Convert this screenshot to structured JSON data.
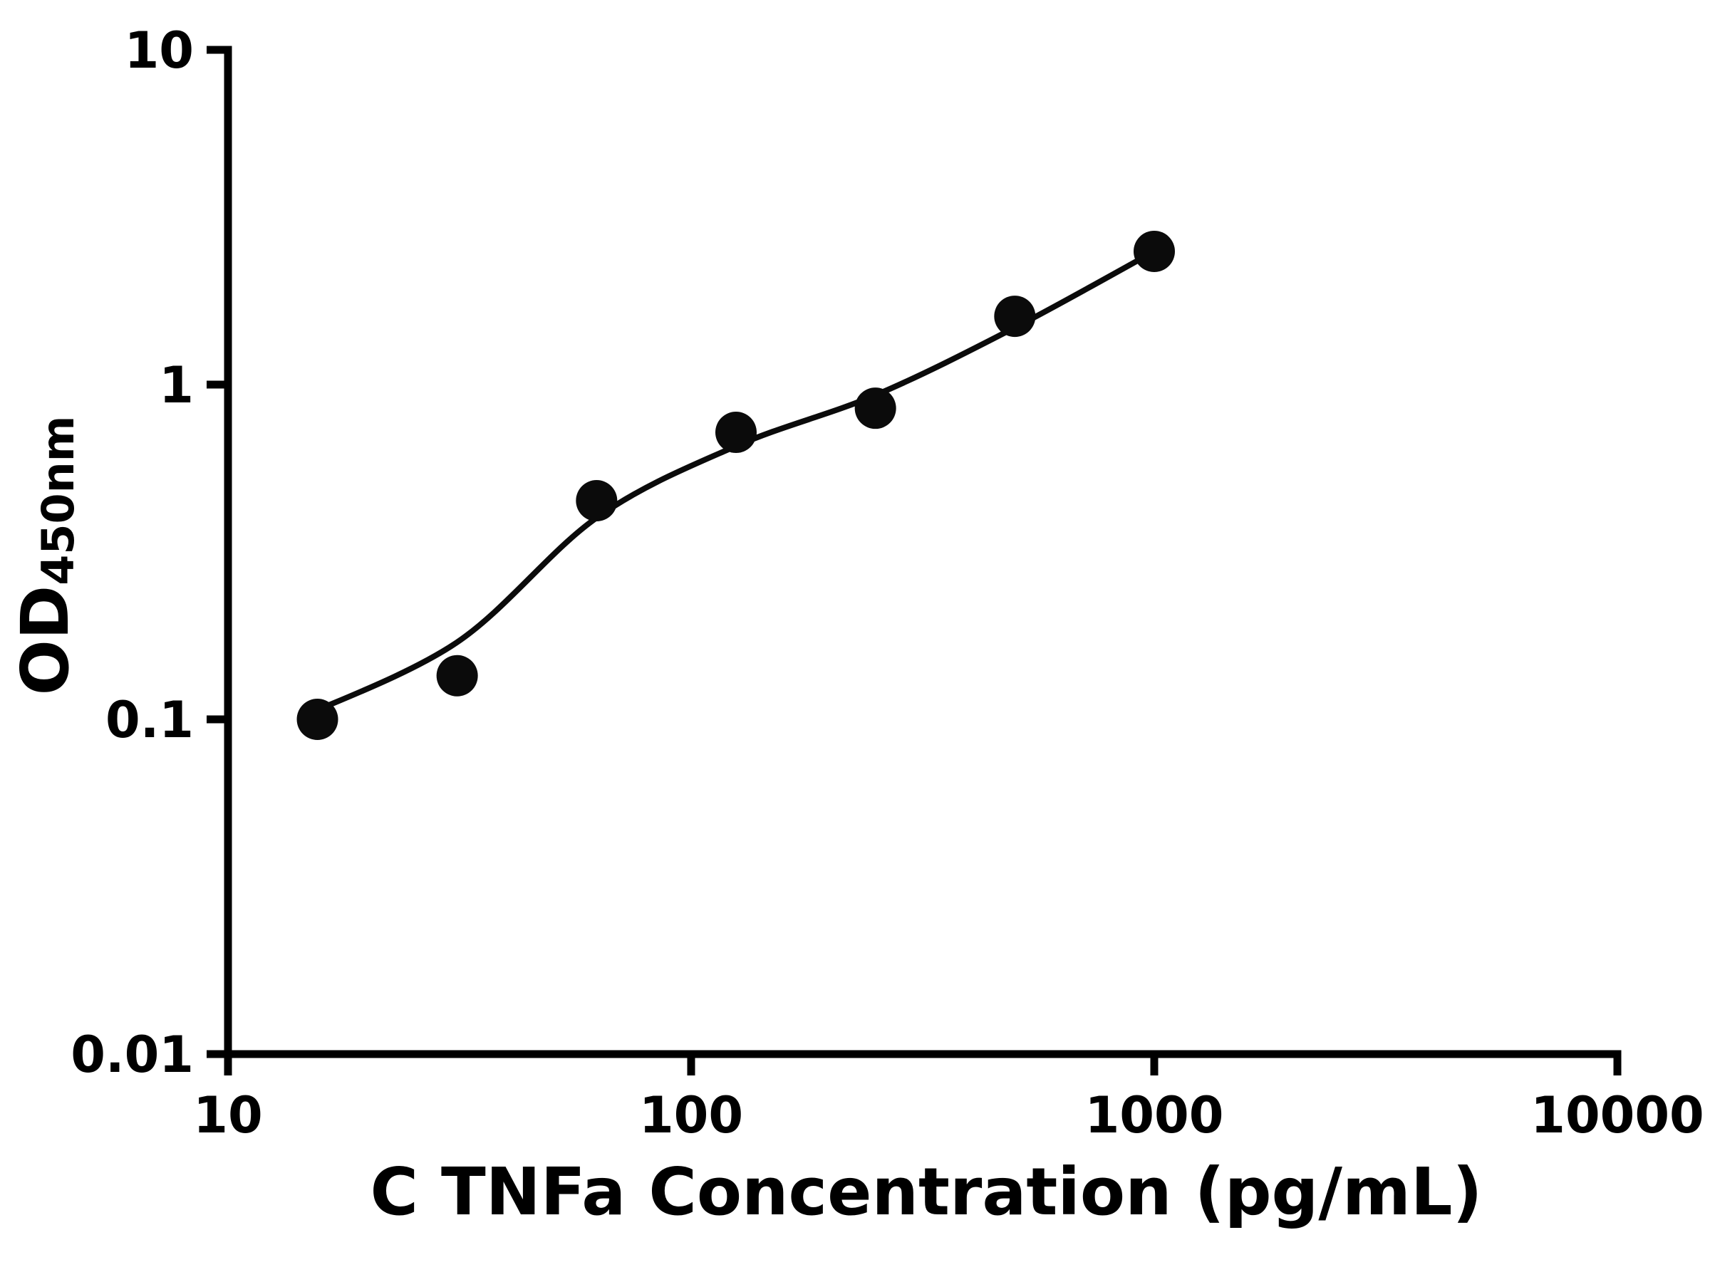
{
  "chart_data": {
    "type": "scatter",
    "title": "",
    "xlabel": "C TNFa Concentration (pg/mL)",
    "ylabel_main": "OD",
    "ylabel_sub": "450nm",
    "x_scale": "log",
    "y_scale": "log",
    "xlim": [
      10,
      10000
    ],
    "ylim": [
      0.01,
      10
    ],
    "grid": false,
    "legend": "none",
    "x_ticks": [
      {
        "value": 10,
        "label": "10"
      },
      {
        "value": 100,
        "label": "100"
      },
      {
        "value": 1000,
        "label": "1000"
      },
      {
        "value": 10000,
        "label": "10000"
      }
    ],
    "y_ticks": [
      {
        "value": 0.01,
        "label": "0.01"
      },
      {
        "value": 0.1,
        "label": "0.1"
      },
      {
        "value": 1,
        "label": "1"
      },
      {
        "value": 10,
        "label": "10"
      }
    ],
    "points": [
      {
        "x": 15.6,
        "y": 0.1
      },
      {
        "x": 31.25,
        "y": 0.135
      },
      {
        "x": 62.5,
        "y": 0.45
      },
      {
        "x": 125,
        "y": 0.72
      },
      {
        "x": 250,
        "y": 0.85
      },
      {
        "x": 500,
        "y": 1.6
      },
      {
        "x": 1000,
        "y": 2.5
      }
    ],
    "fit_curve_anchors": [
      {
        "x": 14.5,
        "y": 0.102
      },
      {
        "x": 31.25,
        "y": 0.17
      },
      {
        "x": 62.5,
        "y": 0.4
      },
      {
        "x": 125,
        "y": 0.655
      },
      {
        "x": 250,
        "y": 0.93
      },
      {
        "x": 500,
        "y": 1.48
      },
      {
        "x": 1000,
        "y": 2.5
      }
    ],
    "colors": {
      "points": "#0b0b0b",
      "curve": "#0b0b0b",
      "axis": "#000000",
      "background": "#ffffff"
    }
  }
}
